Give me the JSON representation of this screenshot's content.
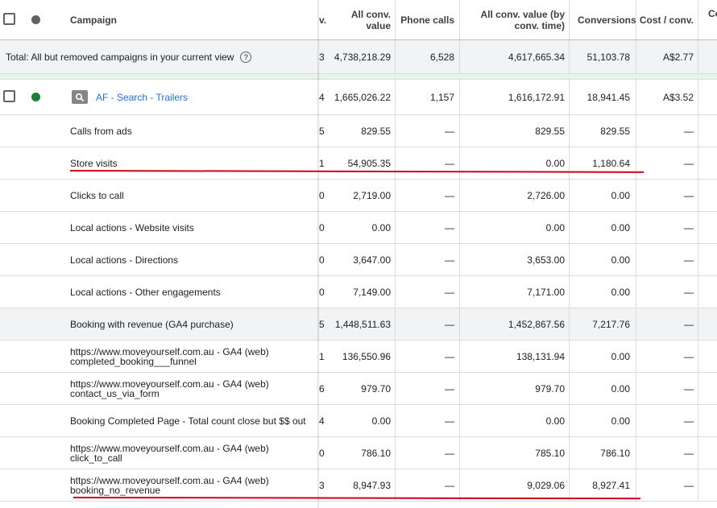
{
  "columns": {
    "campaign": "Campaign",
    "truncated": "v.",
    "all_conv_value": "All conv. value",
    "phone_calls": "Phone calls",
    "all_conv_value_time": "All conv. value (by conv. time)",
    "conversions": "Conversions",
    "cost_conv": "Cost / conv.",
    "last": "Co"
  },
  "total": {
    "label": "Total: All but removed campaigns in your current view",
    "truncated": "3",
    "all_conv_value": "4,738,218.29",
    "phone_calls": "6,528",
    "all_conv_value_time": "4,617,665.34",
    "conversions": "51,103.78",
    "cost_conv": "A$2.77"
  },
  "campaign": {
    "name": "AF - Search - Trailers",
    "type_icon": "search-icon",
    "status_color": "#188038",
    "truncated": "4",
    "all_conv_value": "1,665,026.22",
    "phone_calls": "1,157",
    "all_conv_value_time": "1,616,172.91",
    "conversions": "18,941.45",
    "cost_conv": "A$3.52"
  },
  "rows": [
    {
      "label": "Calls from ads",
      "truncated": "5",
      "acv": "829.55",
      "pc": "—",
      "acvt": "829.55",
      "conv": "829.55",
      "cost": "—"
    },
    {
      "label": "Store visits",
      "truncated": "1",
      "acv": "54,905.35",
      "pc": "—",
      "acvt": "0.00",
      "conv": "1,180.64",
      "cost": "—"
    },
    {
      "label": "Clicks to call",
      "truncated": "0",
      "acv": "2,719.00",
      "pc": "—",
      "acvt": "2,726.00",
      "conv": "0.00",
      "cost": "—"
    },
    {
      "label": "Local actions - Website visits",
      "truncated": "0",
      "acv": "0.00",
      "pc": "—",
      "acvt": "0.00",
      "conv": "0.00",
      "cost": "—"
    },
    {
      "label": "Local actions - Directions",
      "truncated": "0",
      "acv": "3,647.00",
      "pc": "—",
      "acvt": "3,653.00",
      "conv": "0.00",
      "cost": "—"
    },
    {
      "label": "Local actions - Other engagements",
      "truncated": "0",
      "acv": "7,149.00",
      "pc": "—",
      "acvt": "7,171.00",
      "conv": "0.00",
      "cost": "—"
    },
    {
      "label": "Booking with revenue (GA4 purchase)",
      "truncated": "5",
      "acv": "1,448,511.63",
      "pc": "—",
      "acvt": "1,452,867.56",
      "conv": "7,217.76",
      "cost": "—"
    },
    {
      "label": "https://www.moveyourself.com.au - GA4 (web) completed_booking___funnel",
      "truncated": "1",
      "acv": "136,550.96",
      "pc": "—",
      "acvt": "138,131.94",
      "conv": "0.00",
      "cost": "—"
    },
    {
      "label": "https://www.moveyourself.com.au - GA4 (web) contact_us_via_form",
      "truncated": "6",
      "acv": "979.70",
      "pc": "—",
      "acvt": "979.70",
      "conv": "0.00",
      "cost": "—"
    },
    {
      "label": "Booking Completed Page - Total count close but $$ out",
      "truncated": "4",
      "acv": "0.00",
      "pc": "—",
      "acvt": "0.00",
      "conv": "0.00",
      "cost": "—"
    },
    {
      "label": "https://www.moveyourself.com.au - GA4 (web) click_to_call",
      "truncated": "0",
      "acv": "786.10",
      "pc": "—",
      "acvt": "785.10",
      "conv": "786.10",
      "cost": "—"
    },
    {
      "label": "https://www.moveyourself.com.au - GA4 (web) booking_no_revenue",
      "truncated": "3",
      "acv": "8,947.93",
      "pc": "—",
      "acvt": "9,029.06",
      "conv": "8,927.41",
      "cost": "—"
    }
  ]
}
